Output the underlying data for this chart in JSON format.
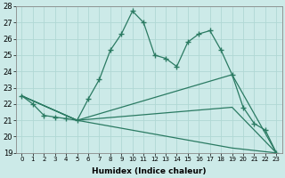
{
  "xlabel": "Humidex (Indice chaleur)",
  "xlim": [
    -0.5,
    23.5
  ],
  "ylim": [
    19,
    28
  ],
  "yticks": [
    19,
    20,
    21,
    22,
    23,
    24,
    25,
    26,
    27,
    28
  ],
  "xticks": [
    0,
    1,
    2,
    3,
    4,
    5,
    6,
    7,
    8,
    9,
    10,
    11,
    12,
    13,
    14,
    15,
    16,
    17,
    18,
    19,
    20,
    21,
    22,
    23
  ],
  "line_color": "#2a7a62",
  "bg_color": "#cceae8",
  "grid_color": "#b0d8d4",
  "lines": [
    {
      "x": [
        0,
        1,
        2,
        3,
        4,
        5,
        6,
        7,
        8,
        9,
        10,
        11,
        12,
        13,
        14,
        15,
        16,
        17,
        18,
        19,
        20,
        21,
        22,
        23
      ],
      "y": [
        22.5,
        22.0,
        21.3,
        21.2,
        21.1,
        21.0,
        22.3,
        23.5,
        25.3,
        26.3,
        27.7,
        27.0,
        25.0,
        24.8,
        24.3,
        25.8,
        26.3,
        26.5,
        25.3,
        23.8,
        21.8,
        20.8,
        20.4,
        19.0
      ]
    },
    {
      "x": [
        0,
        5,
        19,
        23
      ],
      "y": [
        22.5,
        21.0,
        23.8,
        19.0
      ]
    },
    {
      "x": [
        0,
        5,
        19,
        23
      ],
      "y": [
        22.5,
        21.0,
        21.8,
        19.0
      ]
    },
    {
      "x": [
        0,
        5,
        19,
        23
      ],
      "y": [
        22.5,
        21.0,
        19.3,
        19.0
      ]
    }
  ]
}
